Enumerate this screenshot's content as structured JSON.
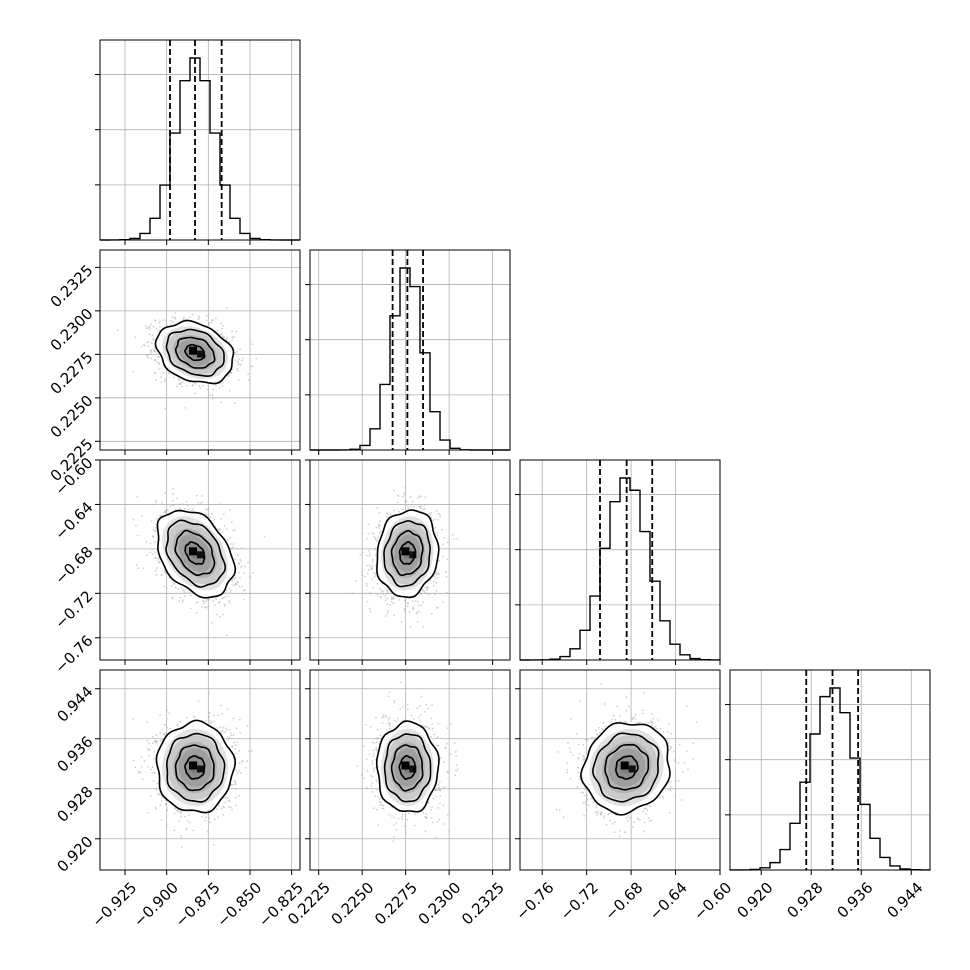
{
  "chart_data": {
    "type": "scatter",
    "kind": "corner",
    "parameters": [
      {
        "range": [
          -0.94,
          -0.82
        ],
        "ticks": [
          -0.925,
          -0.9,
          -0.875,
          -0.85,
          -0.825
        ],
        "tick_labels": [
          "−0.925",
          "−0.900",
          "−0.875",
          "−0.850",
          "−0.825"
        ],
        "mean": -0.883,
        "sigma": 0.0115,
        "quantiles": [
          -0.898,
          -0.883,
          -0.867
        ]
      },
      {
        "range": [
          0.222,
          0.2335
        ],
        "ticks": [
          0.2225,
          0.225,
          0.2275,
          0.23,
          0.2325
        ],
        "tick_labels": [
          "0.2225",
          "0.2250",
          "0.2275",
          "0.2300",
          "0.2325"
        ],
        "mean": 0.2276,
        "sigma": 0.00088,
        "quantiles": [
          0.22675,
          0.2276,
          0.2285
        ]
      },
      {
        "range": [
          -0.78,
          -0.6
        ],
        "ticks": [
          -0.76,
          -0.72,
          -0.68,
          -0.64,
          -0.6
        ],
        "tick_labels": [
          "−0.76",
          "−0.72",
          "−0.68",
          "−0.64",
          "−0.60"
        ],
        "mean": -0.684,
        "sigma": 0.0195,
        "quantiles": [
          -0.708,
          -0.684,
          -0.661
        ]
      },
      {
        "range": [
          0.915,
          0.947
        ],
        "ticks": [
          0.92,
          0.928,
          0.936,
          0.944
        ],
        "tick_labels": [
          "0.920",
          "0.928",
          "0.936",
          "0.944"
        ],
        "mean": 0.9314,
        "sigma": 0.0036,
        "quantiles": [
          0.9272,
          0.9314,
          0.9355
        ]
      }
    ],
    "correlations": [
      {
        "pair": [
          0,
          1
        ],
        "rho": -0.25
      },
      {
        "pair": [
          0,
          2
        ],
        "rho": -0.35
      },
      {
        "pair": [
          0,
          3
        ],
        "rho": 0.0
      },
      {
        "pair": [
          1,
          2
        ],
        "rho": 0.1
      },
      {
        "pair": [
          1,
          3
        ],
        "rho": 0.0
      },
      {
        "pair": [
          2,
          3
        ],
        "rho": 0.1
      }
    ],
    "histogram": {
      "bins": 20,
      "quantile_levels": [
        0.16,
        0.5,
        0.84
      ]
    },
    "contour_levels": [
      0.118,
      0.393,
      0.675,
      0.865
    ],
    "grid": true,
    "colors": {
      "line": "#000000",
      "points": "#b0b0b0",
      "grid": "#b0b0b0",
      "density": "#000000"
    }
  }
}
